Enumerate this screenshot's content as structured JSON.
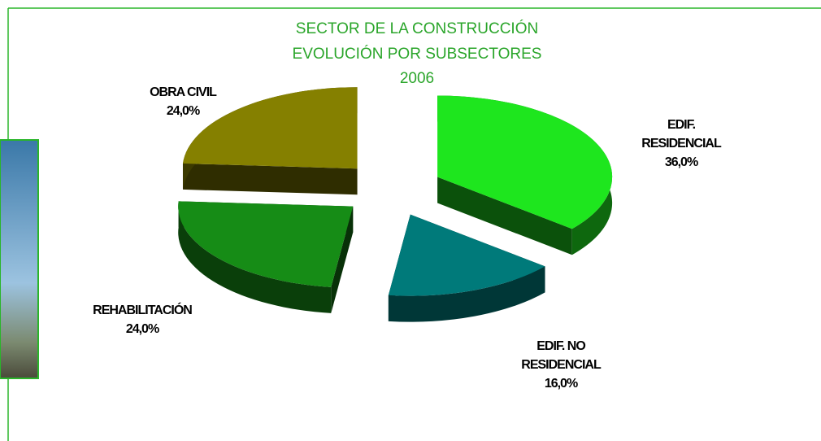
{
  "chart_data": {
    "type": "pie3d",
    "title": [
      "SECTOR DE LA CONSTRUCCIÓN",
      "EVOLUCIÓN POR SUBSECTORES",
      "2006"
    ],
    "categories": [
      "EDIF. RESIDENCIAL",
      "EDIF. NO RESIDENCIAL",
      "REHABILITACIÓN",
      "OBRA CIVIL"
    ],
    "values": [
      36,
      16,
      24,
      24
    ],
    "value_labels": [
      "36,0%",
      "16,0%",
      "24,0%",
      "24,0%"
    ],
    "colors": [
      "#1ee61e",
      "#007a7a",
      "#168c16",
      "#858000"
    ]
  }
}
